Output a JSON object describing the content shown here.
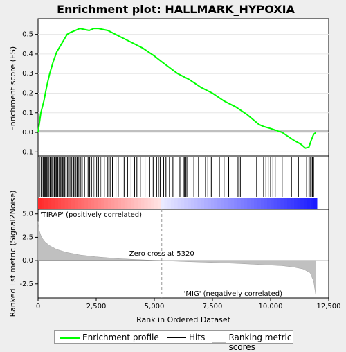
{
  "chart_data": {
    "type": "line",
    "title": "Enrichment plot: HALLMARK_HYPOXIA",
    "xlabel": "Rank in Ordered Dataset",
    "xlim": [
      0,
      12500
    ],
    "x_ticks": [
      0,
      2500,
      5000,
      7500,
      10000,
      12500
    ],
    "x_tick_labels": [
      "0",
      "2,500",
      "5,000",
      "7,500",
      "10,000",
      "12,500"
    ],
    "es_panel": {
      "ylabel": "Enrichment score (ES)",
      "ylim": [
        -0.12,
        0.58
      ],
      "y_ticks": [
        -0.1,
        0.0,
        0.1,
        0.2,
        0.3,
        0.4,
        0.5
      ],
      "y_tick_labels": [
        "-0.1",
        "0.0",
        "0.1",
        "0.2",
        "0.3",
        "0.4",
        "0.5"
      ],
      "series": [
        {
          "name": "Enrichment profile",
          "color": "#00ff00",
          "x": [
            0,
            120,
            250,
            380,
            500,
            650,
            800,
            950,
            1100,
            1250,
            1400,
            1600,
            1800,
            2000,
            2200,
            2400,
            2600,
            2800,
            3000,
            3500,
            4000,
            4500,
            5000,
            5320,
            6000,
            6500,
            7000,
            7500,
            8000,
            8500,
            9000,
            9500,
            9700,
            10000,
            10500,
            11000,
            11300,
            11500,
            11650,
            11750,
            11850,
            11950
          ],
          "y": [
            0.0,
            0.1,
            0.16,
            0.24,
            0.3,
            0.36,
            0.41,
            0.44,
            0.47,
            0.5,
            0.51,
            0.52,
            0.53,
            0.525,
            0.52,
            0.53,
            0.53,
            0.525,
            0.52,
            0.49,
            0.46,
            0.43,
            0.39,
            0.36,
            0.3,
            0.27,
            0.23,
            0.2,
            0.16,
            0.13,
            0.09,
            0.04,
            0.03,
            0.02,
            0.0,
            -0.04,
            -0.06,
            -0.08,
            -0.075,
            -0.04,
            -0.01,
            0.0
          ]
        }
      ]
    },
    "hits_panel": {
      "legend_name": "Hits",
      "hits": [
        60,
        130,
        170,
        220,
        260,
        290,
        320,
        350,
        380,
        420,
        470,
        520,
        560,
        600,
        650,
        700,
        740,
        780,
        810,
        850,
        900,
        960,
        1010,
        1060,
        1100,
        1150,
        1200,
        1260,
        1310,
        1370,
        1450,
        1530,
        1580,
        1630,
        1680,
        1730,
        1790,
        1840,
        1900,
        2000,
        2150,
        2220,
        2300,
        2380,
        2450,
        2520,
        2600,
        2680,
        2750,
        2850,
        3000,
        3100,
        3200,
        3350,
        3450,
        3700,
        3850,
        4000,
        4150,
        4250,
        4400,
        4600,
        4800,
        4950,
        5100,
        5180,
        5250,
        5400,
        5500,
        5650,
        5800,
        6100,
        6250,
        6300,
        6350,
        6400,
        6700,
        6900,
        7200,
        7300,
        7450,
        7800,
        8000,
        8200,
        8600,
        8700,
        9400,
        9700,
        9800,
        9900,
        10000,
        10100,
        10200,
        10500,
        10900,
        11200,
        11550,
        11650,
        11700,
        11750,
        11800,
        11850
      ]
    },
    "metric_panel": {
      "ylabel": "Ranked list metric (Signal2Noise)",
      "legend_name": "Ranking metric scores",
      "ylim": [
        -4.0,
        5.5
      ],
      "y_ticks": [
        -2.5,
        0.0,
        2.5,
        5.0
      ],
      "y_tick_labels": [
        "-2.5",
        "0.0",
        "2.5",
        "5.0"
      ],
      "zero_cross": 5320,
      "zero_cross_label": "Zero cross at 5320",
      "positive_label": "'TIRAP' (positively correlated)",
      "negative_label": "'MIG' (negatively correlated)",
      "metric_x": [
        0,
        50,
        150,
        300,
        500,
        800,
        1200,
        1800,
        2500,
        3500,
        4500,
        5320,
        6500,
        7500,
        8500,
        9500,
        10500,
        11000,
        11400,
        11700,
        11850,
        11950
      ],
      "metric_y": [
        4.2,
        3.2,
        2.5,
        2.0,
        1.6,
        1.2,
        0.9,
        0.6,
        0.4,
        0.2,
        0.08,
        0.0,
        -0.12,
        -0.2,
        -0.3,
        -0.42,
        -0.55,
        -0.7,
        -0.9,
        -1.3,
        -2.2,
        -3.8
      ]
    }
  }
}
